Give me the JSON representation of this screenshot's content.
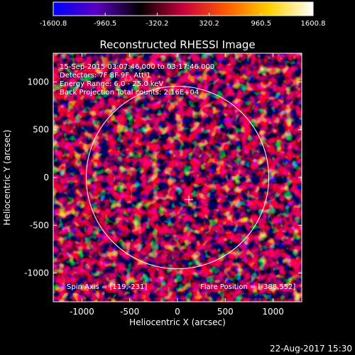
{
  "chart_data": {
    "type": "heatmap",
    "title": "Reconstructed RHESSI Image",
    "xlabel": "Heliocentric X (arcsec)",
    "ylabel": "Heliocentric Y (arcsec)",
    "xlim": [
      -1300,
      1300
    ],
    "ylim": [
      -1300,
      1300
    ],
    "xticks": [
      -1000,
      -500,
      0,
      500,
      1000
    ],
    "yticks": [
      1000,
      500,
      0,
      -500,
      -1000
    ],
    "colorbar": {
      "range": [
        -1600.8,
        1600.8
      ],
      "ticks": [
        "-1600.8",
        "-960.5",
        "-320.2",
        "320.2",
        "960.5",
        "1600.8"
      ],
      "tick_values": [
        -1600.8,
        -960.5,
        -320.2,
        320.2,
        960.5,
        1600.8
      ],
      "stops": [
        "#0000ff",
        "#5a00c0",
        "#000000",
        "#c8003c",
        "#ff5a00",
        "#ffd200",
        "#ffffff"
      ]
    },
    "annotations": [
      "15-Sep-2015 03:07:46.000 to 03:17:46.000",
      "Detectors: 7F 8F 9F, Att 1",
      "Energy Range: 6.0 - 25.0 keV",
      "Back Projection    Total counts: 2.16E+04"
    ],
    "spin_axis_text": "Spin Axis = [119,-231]",
    "flare_position_text": "Flare Position = [-388,552]",
    "solar_limb": {
      "center": [
        0,
        0
      ],
      "radius_arcsec": 955
    },
    "cross_marker": [
      119,
      -231
    ],
    "grid": false
  },
  "footer_timestamp": "22-Aug-2017 15:30",
  "colors": {
    "background": "#000000",
    "foreground": "#ffffff"
  }
}
